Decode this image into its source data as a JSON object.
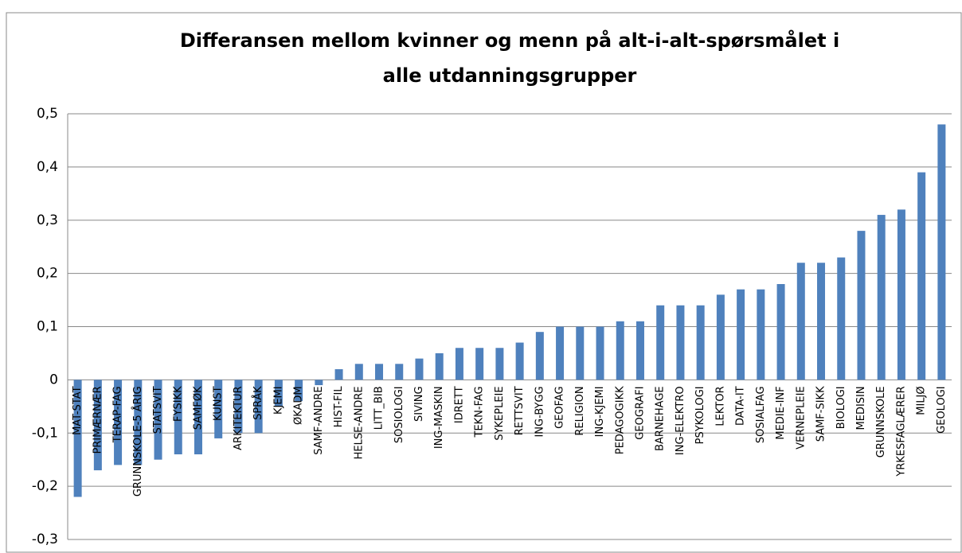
{
  "chart_data": {
    "type": "bar",
    "title": [
      "Differansen mellom kvinner og menn på alt-i-alt-spørsmålet i",
      "alle utdanningsgrupper"
    ],
    "categories": [
      "MAT-STAT",
      "PRIMÆRNÆR",
      "TERAP-FAG",
      "GRUNNSKOLE-5 ÅRIG",
      "STATSVIT",
      "FYSIKK",
      "SAMFØK",
      "KUNST",
      "ARKITEKTUR",
      "SPRÅK",
      "KJEMI",
      "ØKADM",
      "SAMF-ANDRE",
      "HIST-FIL",
      "HELSE-ANDRE",
      "LITT_BIB",
      "SOSIOLOGI",
      "SIVING",
      "ING-MASKIN",
      "IDRETT",
      "TEKN-FAG",
      "SYKEPLEIE",
      "RETTSVIT",
      "ING-BYGG",
      "GEOFAG",
      "RELIGION",
      "ING-KJEMI",
      "PEDAGOGIKK",
      "GEOGRAFI",
      "BARNEHAGE",
      "ING-ELEKTRO",
      "PSYKOLOGI",
      "LEKTOR",
      "DATA-IT",
      "SOSIALFAG",
      "MEDIE-INF",
      "VERNEPLEIE",
      "SAMF-SIKK",
      "BIOLOGI",
      "MEDISIN",
      "GRUNNSKOLE",
      "YRKESFAGLÆRER",
      "MILJØ",
      "GEOLOGI"
    ],
    "values": [
      -0.22,
      -0.17,
      -0.16,
      -0.16,
      -0.15,
      -0.14,
      -0.14,
      -0.11,
      -0.1,
      -0.1,
      -0.05,
      -0.04,
      -0.01,
      0.02,
      0.03,
      0.03,
      0.03,
      0.04,
      0.05,
      0.06,
      0.06,
      0.06,
      0.07,
      0.09,
      0.1,
      0.1,
      0.1,
      0.11,
      0.11,
      0.14,
      0.14,
      0.14,
      0.16,
      0.17,
      0.17,
      0.18,
      0.22,
      0.22,
      0.23,
      0.28,
      0.31,
      0.32,
      0.39,
      0.48
    ],
    "color": "#4f81bd",
    "ylim": [
      -0.3,
      0.5
    ],
    "yticks": [
      {
        "value": -0.3,
        "label": "-0,3"
      },
      {
        "value": -0.2,
        "label": "-0,2"
      },
      {
        "value": -0.1,
        "label": "-0,1"
      },
      0,
      {
        "value": 0.1,
        "label": "0,1"
      },
      {
        "value": 0.2,
        "label": "0,2"
      },
      {
        "value": 0.3,
        "label": "0,3"
      },
      {
        "value": 0.4,
        "label": "0,4"
      },
      {
        "value": 0.5,
        "label": "0,5"
      }
    ],
    "grid": true
  }
}
